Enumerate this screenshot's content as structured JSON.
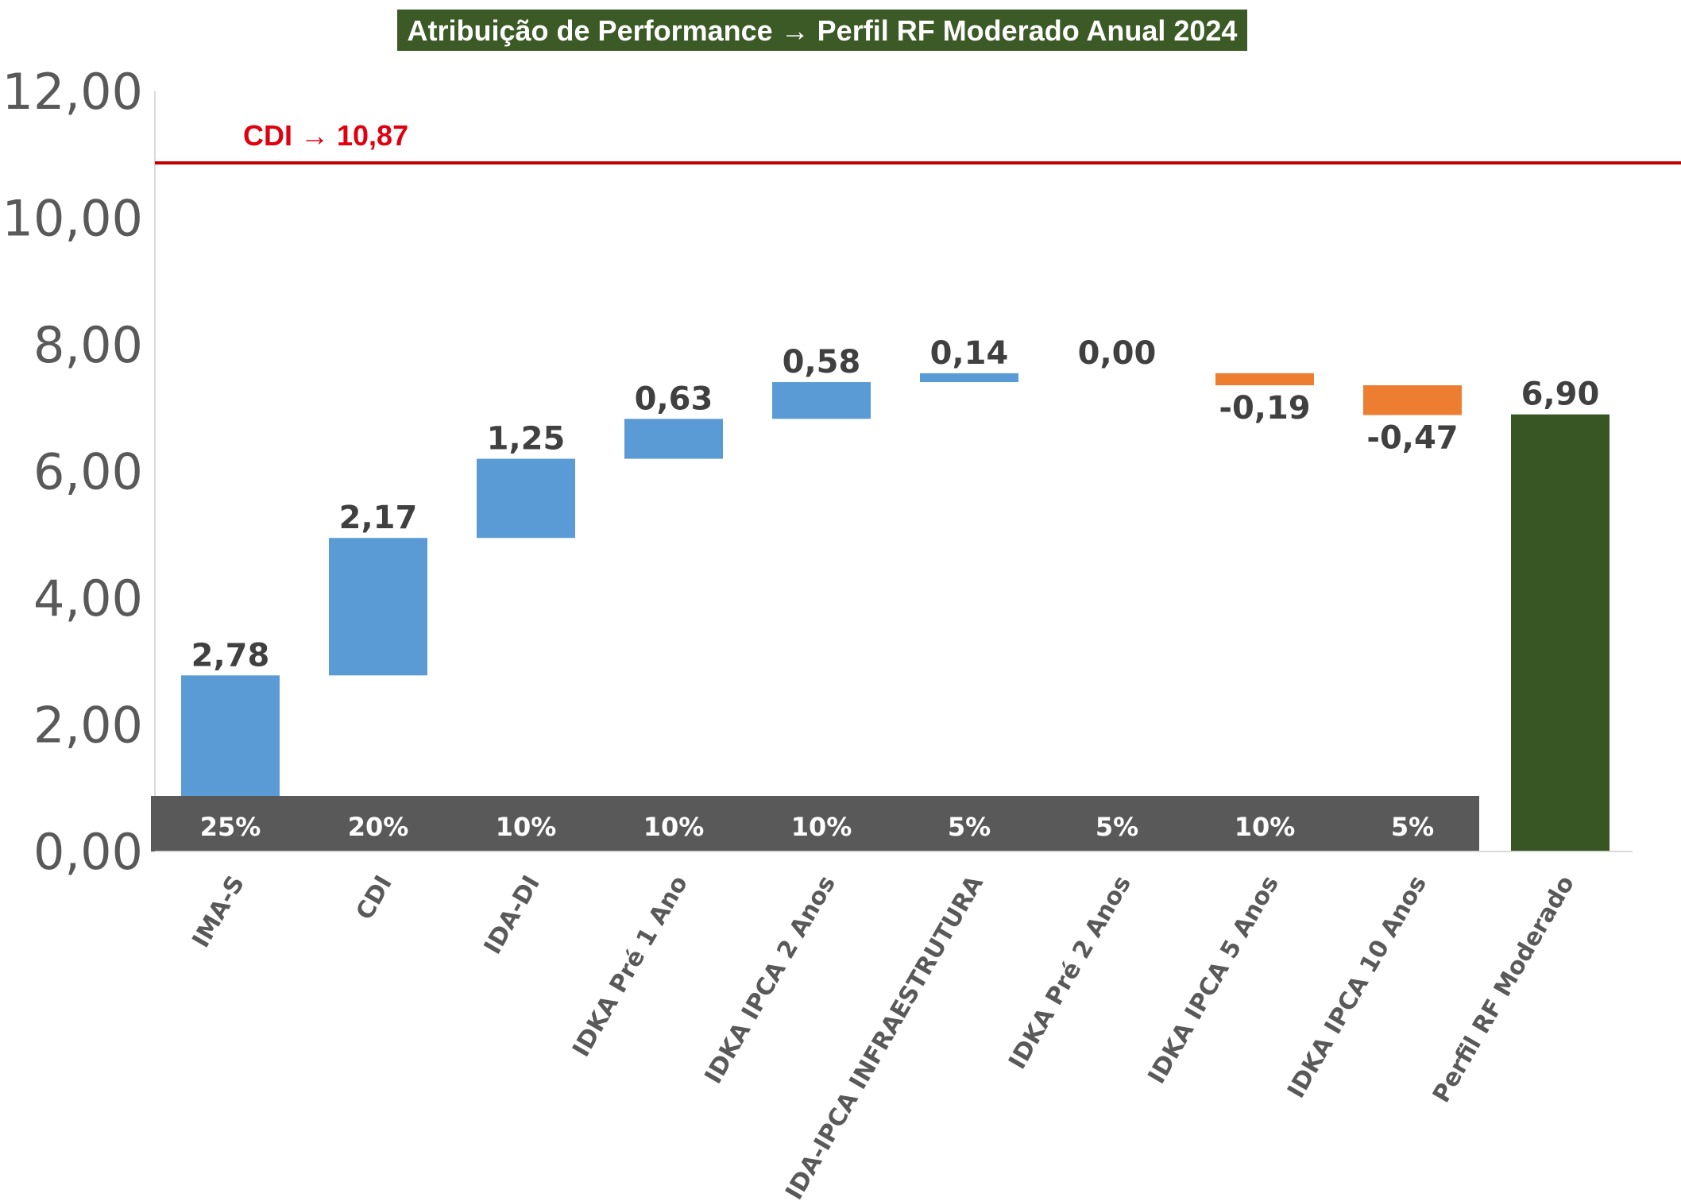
{
  "chart_data": {
    "type": "bar",
    "subtype": "waterfall",
    "title": "Atribuição de Performance → Perfil RF Moderado Anual 2024",
    "ylim": [
      0,
      12
    ],
    "yticks": [
      "0,00",
      "2,00",
      "4,00",
      "6,00",
      "8,00",
      "10,00",
      "12,00"
    ],
    "grid": false,
    "reference_line": {
      "label": "CDI → 10,87",
      "value": 10.87,
      "color": "#c00000"
    },
    "categories": [
      "IMA-S",
      "CDI",
      "IDA-DI",
      "IDKA Pré 1 Ano",
      "IDKA IPCA 2 Anos",
      "IDA-IPCA INFRAESTRUTURA",
      "IDKA Pré 2 Anos",
      "IDKA IPCA 5 Anos",
      "IDKA IPCA 10 Anos",
      "Perfil RF Moderado"
    ],
    "values": [
      2.78,
      2.17,
      1.25,
      0.63,
      0.58,
      0.14,
      0.0,
      -0.19,
      -0.47,
      6.9
    ],
    "value_labels": [
      "2,78",
      "2,17",
      "1,25",
      "0,63",
      "0,58",
      "0,14",
      "0,00",
      "-0,19",
      "-0,47",
      "6,90"
    ],
    "weights": [
      "25%",
      "20%",
      "10%",
      "10%",
      "10%",
      "5%",
      "5%",
      "10%",
      "5%"
    ],
    "total_index": 9,
    "colors": {
      "increase": "#5b9bd5",
      "decrease": "#ed7d31",
      "total": "#375623",
      "weight_band": "#595959",
      "title_bg": "#3b5a26"
    }
  }
}
